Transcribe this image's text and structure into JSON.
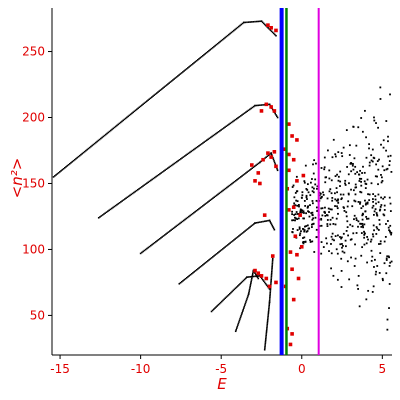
{
  "chart_data": {
    "type": "scatter",
    "title": "",
    "xlabel": "E",
    "ylabel": "<n²>",
    "xlim": [
      -15.5,
      5.6
    ],
    "ylim": [
      20,
      283
    ],
    "xticks": [
      -15,
      -10,
      -5,
      0,
      5
    ],
    "yticks": [
      50,
      100,
      150,
      200,
      250
    ],
    "grid": false,
    "legend": "none",
    "vertical_lines": [
      {
        "x": -1.25,
        "color": "#0000ff"
      },
      {
        "x": -0.95,
        "color": "#008000"
      },
      {
        "x": 1.05,
        "color": "#e000e0"
      }
    ],
    "series": [
      {
        "color": "#000000",
        "branches": [
          {
            "x": [
              -15.4,
              -3.6,
              -2.5,
              -1.6
            ],
            "y": [
              155,
              272,
              273,
              262
            ]
          },
          {
            "x": [
              -12.6,
              -2.9,
              -2.0,
              -1.5
            ],
            "y": [
              124,
              209,
              210,
              200
            ]
          },
          {
            "x": [
              -10.0,
              -2.6,
              -1.9,
              -1.5
            ],
            "y": [
              97,
              166,
              173,
              160
            ]
          },
          {
            "x": [
              -7.6,
              -2.9,
              -2.0,
              -1.7
            ],
            "y": [
              74,
              120,
              122,
              115
            ]
          },
          {
            "x": [
              -5.6,
              -3.4,
              -2.6,
              -2.0
            ],
            "y": [
              53,
              79,
              80,
              70
            ]
          },
          {
            "x": [
              -4.1,
              -3.3,
              -3.0,
              -2.7
            ],
            "y": [
              38,
              66,
              84,
              78
            ]
          },
          {
            "x": [
              -2.3,
              -2.0,
              -1.8
            ],
            "y": [
              24,
              60,
              93
            ]
          }
        ],
        "cloud": {
          "x_range": [
            -0.6,
            5.6
          ],
          "y_center": 130,
          "y_spread": 45,
          "count": 520
        }
      },
      {
        "color": "#e00000",
        "points": [
          [
            -2.9,
            84
          ],
          [
            -2.7,
            82
          ],
          [
            -2.5,
            80
          ],
          [
            -2.2,
            78
          ],
          [
            -2.0,
            72
          ],
          [
            -1.8,
            95
          ],
          [
            -1.6,
            75
          ],
          [
            -2.9,
            152
          ],
          [
            -2.7,
            158
          ],
          [
            -2.4,
            168
          ],
          [
            -2.1,
            173
          ],
          [
            -1.9,
            170
          ],
          [
            -1.6,
            163
          ],
          [
            -1.7,
            174
          ],
          [
            -2.5,
            205
          ],
          [
            -2.2,
            210
          ],
          [
            -1.9,
            208
          ],
          [
            -1.7,
            205
          ],
          [
            -1.6,
            266
          ],
          [
            -1.9,
            268
          ],
          [
            -2.1,
            270
          ],
          [
            -0.8,
            195
          ],
          [
            -0.6,
            186
          ],
          [
            -0.3,
            183
          ],
          [
            -0.8,
            172
          ],
          [
            -0.5,
            168
          ],
          [
            -1.1,
            176
          ],
          [
            -0.8,
            160
          ],
          [
            -0.3,
            152
          ],
          [
            -0.9,
            146
          ],
          [
            -0.5,
            132
          ],
          [
            -0.8,
            130
          ],
          [
            -0.4,
            110
          ],
          [
            -0.7,
            98
          ],
          [
            -0.3,
            96
          ],
          [
            -0.6,
            85
          ],
          [
            -0.2,
            78
          ],
          [
            -1.0,
            72
          ],
          [
            -0.5,
            62
          ],
          [
            -0.9,
            40
          ],
          [
            -0.6,
            36
          ],
          [
            -0.7,
            28
          ],
          [
            -3.1,
            164
          ],
          [
            -2.6,
            150
          ],
          [
            -2.3,
            126
          ],
          [
            0.1,
            156
          ],
          [
            -0.1,
            126
          ],
          [
            0.0,
            102
          ]
        ]
      }
    ]
  }
}
